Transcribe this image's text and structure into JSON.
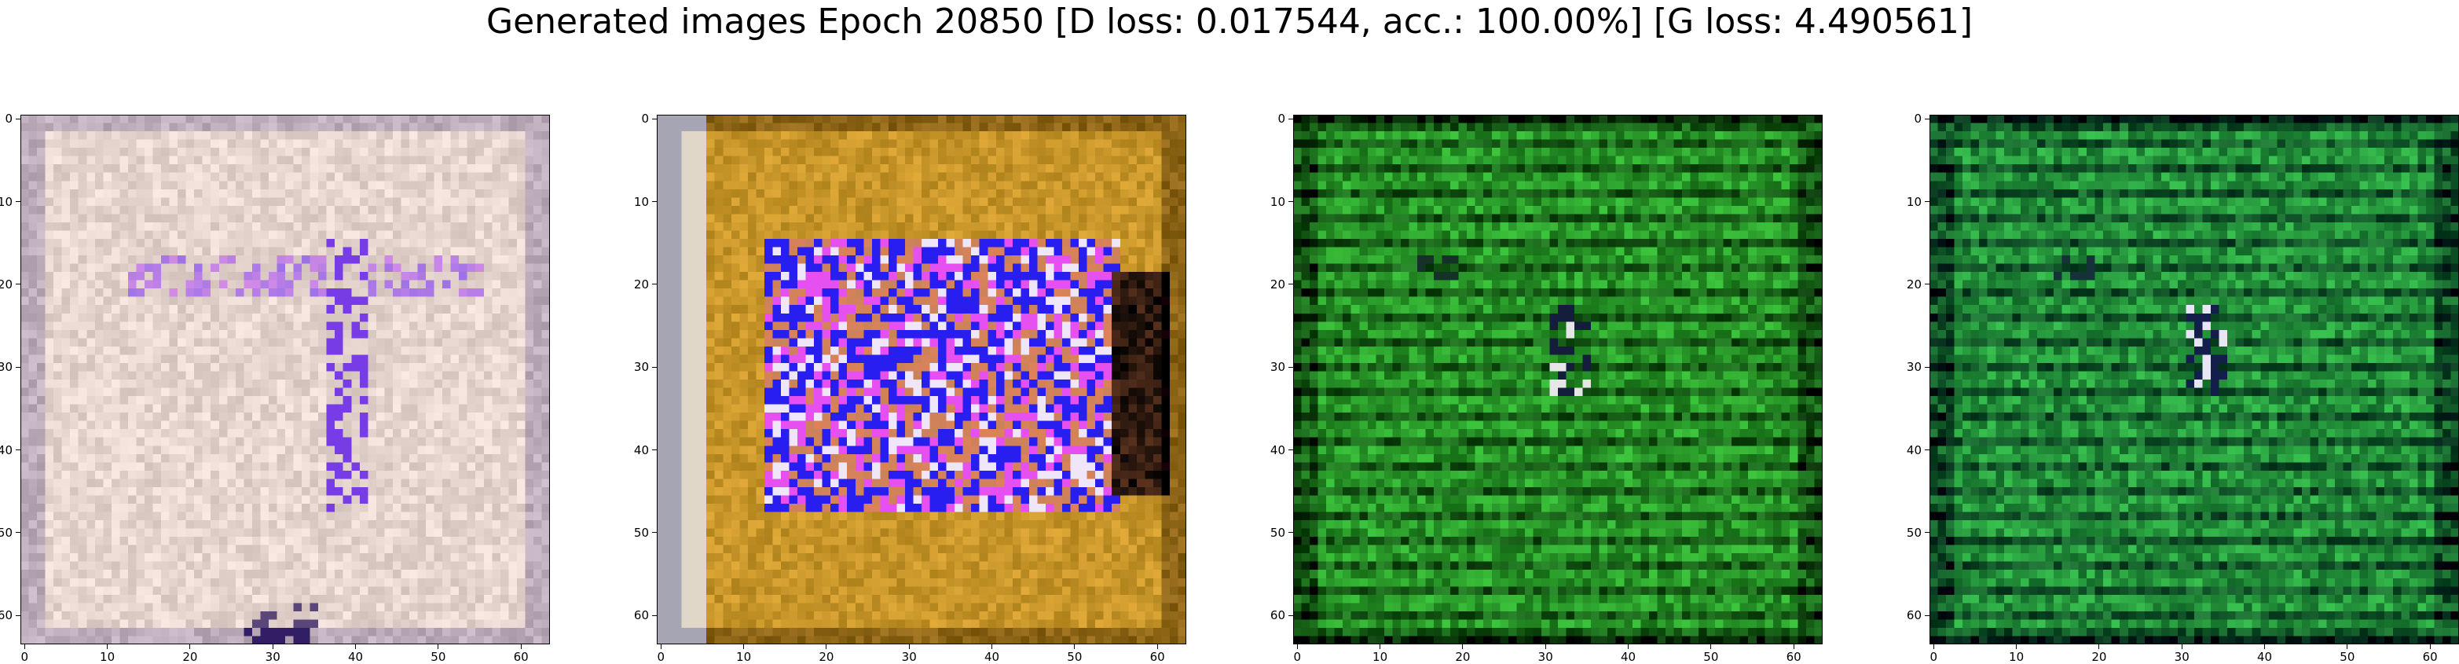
{
  "figure": {
    "suptitle": "Generated images Epoch 20850 [D loss: 0.017544, acc.: 100.00%] [G loss: 4.490561]"
  },
  "axes": {
    "ticks": [
      "0",
      "10",
      "20",
      "30",
      "40",
      "50",
      "60"
    ],
    "tick_values": [
      0,
      10,
      20,
      30,
      40,
      50,
      60
    ],
    "extent": [
      -0.5,
      63.5
    ]
  },
  "panels": [
    {
      "name": "generated-image-1",
      "style": "pale",
      "base": "#e6d6cf",
      "accent": "#b4a0ff"
    },
    {
      "name": "generated-image-2",
      "style": "ochre",
      "base": "#c8962a",
      "accent": "#3c28ff"
    },
    {
      "name": "generated-image-3",
      "style": "green",
      "base": "#2a9a2a",
      "accent": "#0a3a0a"
    },
    {
      "name": "generated-image-4",
      "style": "green2",
      "base": "#26962e",
      "accent": "#0a3a14"
    }
  ]
}
